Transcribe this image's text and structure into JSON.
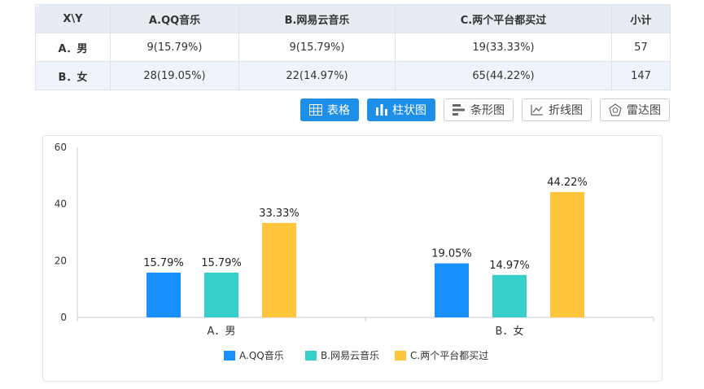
{
  "table": {
    "headers": [
      "X\\Y",
      "A.QQ音乐",
      "B.网易云音乐",
      "C.两个平台都买过",
      "小计"
    ],
    "rows": [
      {
        "label": "A．男",
        "cells": [
          "9(15.79%)",
          "9(15.79%)",
          "19(33.33%)",
          "57"
        ]
      },
      {
        "label": "B．女",
        "cells": [
          "28(19.05%)",
          "22(14.97%)",
          "65(44.22%)",
          "147"
        ]
      }
    ]
  },
  "toolbar": {
    "buttons": [
      {
        "label": "表格",
        "icon": "table-icon",
        "active": true
      },
      {
        "label": "柱状图",
        "icon": "bar-chart-icon",
        "active": true
      },
      {
        "label": "条形图",
        "icon": "horizontal-bar-icon",
        "active": false
      },
      {
        "label": "折线图",
        "icon": "line-chart-icon",
        "active": false
      },
      {
        "label": "雷达图",
        "icon": "radar-chart-icon",
        "active": false
      }
    ]
  },
  "chart_data": {
    "type": "bar",
    "categories": [
      "A．男",
      "B．女"
    ],
    "series": [
      {
        "name": "A.QQ音乐",
        "values": [
          15.79,
          19.05
        ],
        "labels": [
          "15.79%",
          "19.05%"
        ],
        "color": "#1890ff"
      },
      {
        "name": "B.网易云音乐",
        "values": [
          15.79,
          14.97
        ],
        "labels": [
          "15.79%",
          "14.97%"
        ],
        "color": "#36cfc9"
      },
      {
        "name": "C.两个平台都买过",
        "values": [
          33.33,
          44.22
        ],
        "labels": [
          "33.33%",
          "44.22%"
        ],
        "color": "#ffc53d"
      }
    ],
    "ylim": [
      0,
      60
    ],
    "yticks": [
      0,
      20,
      40,
      60
    ],
    "grid": false,
    "legend_position": "bottom"
  }
}
